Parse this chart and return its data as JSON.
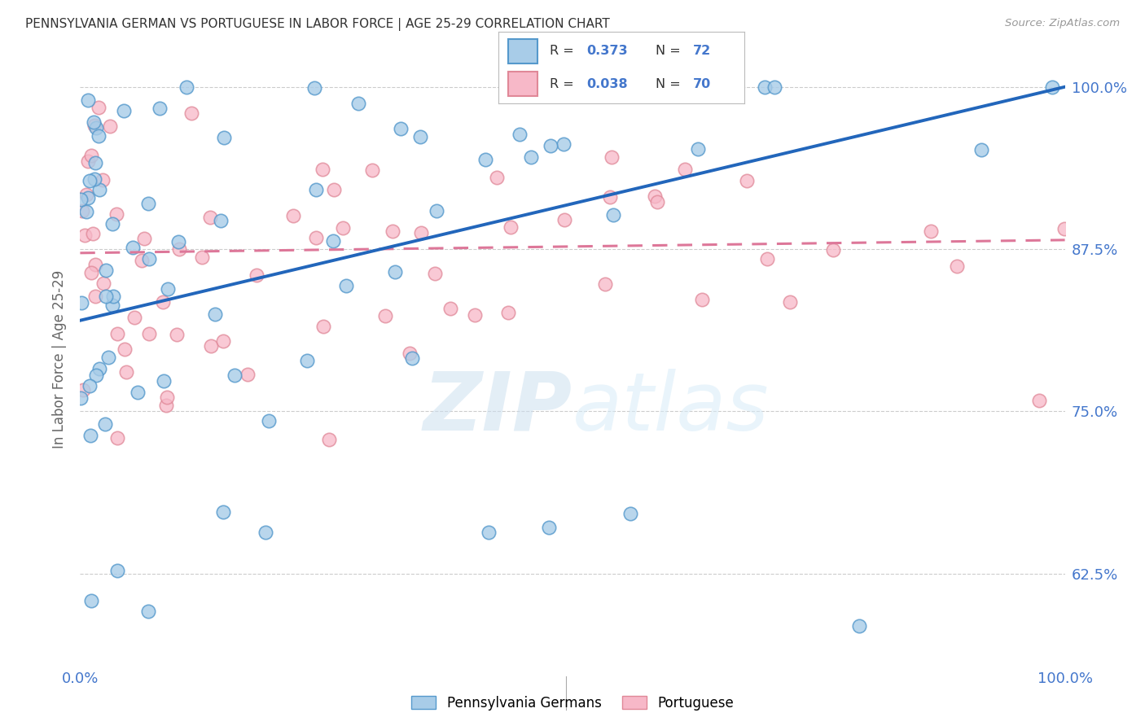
{
  "title": "PENNSYLVANIA GERMAN VS PORTUGUESE IN LABOR FORCE | AGE 25-29 CORRELATION CHART",
  "source": "Source: ZipAtlas.com",
  "ylabel": "In Labor Force | Age 25-29",
  "xmin": 0.0,
  "xmax": 1.0,
  "ymin": 0.555,
  "ymax": 1.025,
  "yticks": [
    0.625,
    0.75,
    0.875,
    1.0
  ],
  "ytick_labels": [
    "62.5%",
    "75.0%",
    "87.5%",
    "100.0%"
  ],
  "xticks": [
    0.0,
    0.2,
    0.4,
    0.6,
    0.8,
    1.0
  ],
  "xtick_labels": [
    "0.0%",
    "",
    "",
    "",
    "",
    "100.0%"
  ],
  "blue_R": 0.373,
  "blue_N": 72,
  "pink_R": 0.038,
  "pink_N": 70,
  "blue_color": "#a8cce8",
  "pink_color": "#f7b8c8",
  "blue_edge_color": "#5599cc",
  "pink_edge_color": "#e08898",
  "blue_line_color": "#2266bb",
  "pink_line_color": "#dd7799",
  "bg_color": "#ffffff",
  "grid_color": "#cccccc",
  "title_color": "#333333",
  "axis_tick_color": "#4477cc",
  "watermark_color": "#ddeeff",
  "legend_label_pa": "Pennsylvania Germans",
  "legend_label_pt": "Portuguese",
  "legend_R_blue": "0.373",
  "legend_N_blue": "72",
  "legend_R_pink": "0.038",
  "legend_N_pink": "70",
  "blue_seed": 99,
  "pink_seed": 77,
  "blue_line_start_y": 0.82,
  "blue_line_end_y": 1.0,
  "pink_line_start_y": 0.872,
  "pink_line_end_y": 0.882
}
